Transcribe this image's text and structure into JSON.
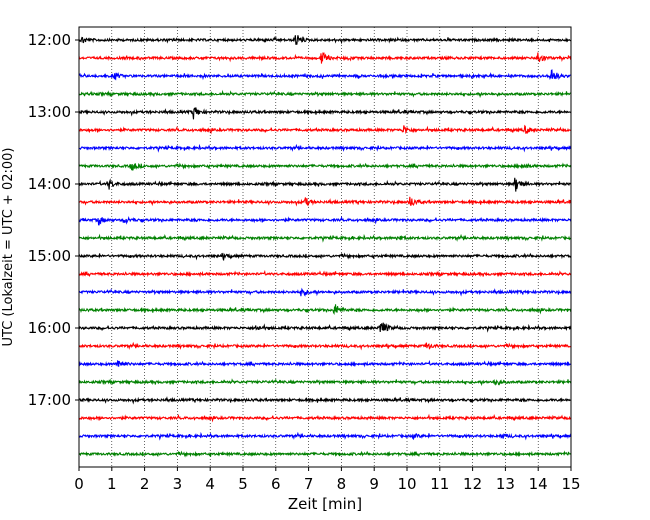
{
  "chart_data": {
    "type": "line",
    "title": "",
    "xlabel": "Zeit  [min]",
    "ylabel": "UTC (Lokalzeit = UTC + 02:00)",
    "xlim": [
      0,
      15
    ],
    "x_ticks": [
      "0",
      "1",
      "2",
      "3",
      "4",
      "5",
      "6",
      "7",
      "8",
      "9",
      "10",
      "11",
      "12",
      "13",
      "14",
      "15"
    ],
    "y_ticks": [
      "12:00",
      "13:00",
      "14:00",
      "15:00",
      "16:00",
      "17:00"
    ],
    "grid": "vertical dotted lines at each minute",
    "trace_interval_minutes": 15,
    "color_cycle": [
      "#000000",
      "#ff0000",
      "#0000ff",
      "#008000"
    ],
    "series": [
      {
        "start": "12:00",
        "color": "#000000",
        "events": [
          {
            "x": 0.1,
            "a": 0.5
          },
          {
            "x": 6.6,
            "a": 0.9
          }
        ]
      },
      {
        "start": "12:15",
        "color": "#ff0000",
        "events": [
          {
            "x": 7.4,
            "a": 1.0
          },
          {
            "x": 14.0,
            "a": 1.0
          }
        ]
      },
      {
        "start": "12:30",
        "color": "#0000ff",
        "events": [
          {
            "x": 1.1,
            "a": 0.4
          },
          {
            "x": 14.4,
            "a": 1.3
          }
        ]
      },
      {
        "start": "12:45",
        "color": "#008000",
        "events": []
      },
      {
        "start": "13:00",
        "color": "#000000",
        "events": [
          {
            "x": 3.5,
            "a": 0.9
          }
        ]
      },
      {
        "start": "13:15",
        "color": "#ff0000",
        "events": [
          {
            "x": 9.9,
            "a": 0.6
          },
          {
            "x": 13.6,
            "a": 0.6
          }
        ]
      },
      {
        "start": "13:30",
        "color": "#0000ff",
        "events": []
      },
      {
        "start": "13:45",
        "color": "#008000",
        "events": [
          {
            "x": 1.6,
            "a": 0.7
          },
          {
            "x": 13.5,
            "a": 0.4
          }
        ]
      },
      {
        "start": "14:00",
        "color": "#000000",
        "events": [
          {
            "x": 0.9,
            "a": 0.8
          },
          {
            "x": 13.3,
            "a": 1.2
          }
        ]
      },
      {
        "start": "14:15",
        "color": "#ff0000",
        "events": [
          {
            "x": 6.9,
            "a": 0.6
          },
          {
            "x": 10.1,
            "a": 0.8
          }
        ]
      },
      {
        "start": "14:30",
        "color": "#0000ff",
        "events": [
          {
            "x": 0.6,
            "a": 0.6
          },
          {
            "x": 1.4,
            "a": 0.5
          }
        ]
      },
      {
        "start": "14:45",
        "color": "#008000",
        "events": [
          {
            "x": 9.7,
            "a": 0.3
          }
        ]
      },
      {
        "start": "15:00",
        "color": "#000000",
        "events": [
          {
            "x": 4.4,
            "a": 0.3
          }
        ]
      },
      {
        "start": "15:15",
        "color": "#ff0000",
        "events": []
      },
      {
        "start": "15:30",
        "color": "#0000ff",
        "events": [
          {
            "x": 6.8,
            "a": 0.7
          }
        ]
      },
      {
        "start": "15:45",
        "color": "#008000",
        "events": [
          {
            "x": 7.8,
            "a": 0.9
          }
        ]
      },
      {
        "start": "16:00",
        "color": "#000000",
        "events": [
          {
            "x": 5.4,
            "a": 0.4
          },
          {
            "x": 9.2,
            "a": 1.3
          }
        ]
      },
      {
        "start": "16:15",
        "color": "#ff0000",
        "events": [
          {
            "x": 10.6,
            "a": 0.5
          }
        ]
      },
      {
        "start": "16:30",
        "color": "#0000ff",
        "events": [
          {
            "x": 1.2,
            "a": 0.8
          }
        ]
      },
      {
        "start": "16:45",
        "color": "#008000",
        "events": [
          {
            "x": 12.7,
            "a": 0.5
          }
        ]
      },
      {
        "start": "17:00",
        "color": "#000000",
        "events": []
      },
      {
        "start": "17:15",
        "color": "#ff0000",
        "events": []
      },
      {
        "start": "17:30",
        "color": "#0000ff",
        "events": [
          {
            "x": 10.2,
            "a": 0.3
          },
          {
            "x": 12.9,
            "a": 0.3
          }
        ]
      },
      {
        "start": "17:45",
        "color": "#008000",
        "events": []
      }
    ]
  }
}
